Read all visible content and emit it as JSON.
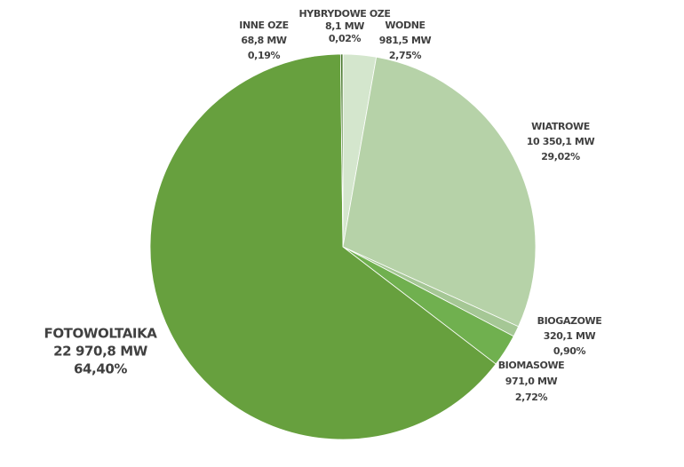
{
  "chart_data": {
    "type": "pie",
    "categories": [
      "HYBRYDOWE  OZE",
      "WODNE",
      "WIATROWE",
      "BIOGAZOWE",
      "BIOMASOWE",
      "FOTOWOLTAIKA",
      "INNE OZE"
    ],
    "values": [
      8.1,
      981.5,
      10350.1,
      320.1,
      971.0,
      22970.8,
      68.8
    ],
    "value_labels": [
      "8,1 MW",
      "981,5 MW",
      "10 350,1 MW",
      "320,1 MW",
      "971,0 MW",
      "22 970,8 MW",
      "68,8 MW"
    ],
    "shares": [
      0.02,
      2.75,
      29.02,
      0.9,
      2.72,
      64.4,
      0.19
    ],
    "share_labels": [
      "0,02%",
      "2,75%",
      "29,02%",
      "0,90%",
      "2,72%",
      "64,40%",
      "0,19%"
    ],
    "colors": [
      "#3e6a29",
      "#d4e6cd",
      "#b6d2a8",
      "#a5c795",
      "#70b04f",
      "#67a03e",
      "#4b7a2f"
    ]
  }
}
